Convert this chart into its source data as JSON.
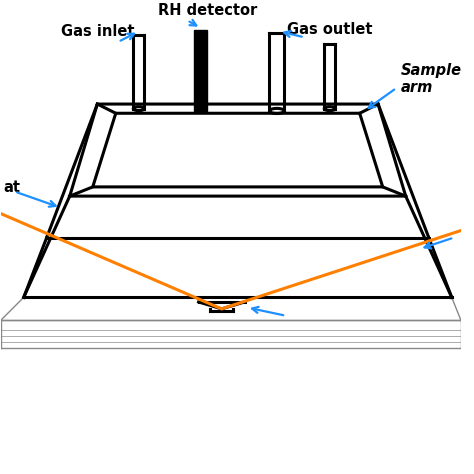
{
  "bg_color": "#ffffff",
  "box_color": "#000000",
  "gray_color": "#888888",
  "orange_color": "#ff8000",
  "blue_color": "#1e90ff",
  "labels": {
    "rh_detector": "RH detector",
    "gas_inlet": "Gas inlet",
    "gas_outlet": "Gas outlet",
    "sample_arm": "Sample\narm"
  },
  "label_fontsize": 10.5,
  "label_fontweight": "bold",
  "lw_main": 2.2,
  "lw_gray": 1.0,
  "lw_orange": 2.2,
  "lw_blue": 1.6
}
